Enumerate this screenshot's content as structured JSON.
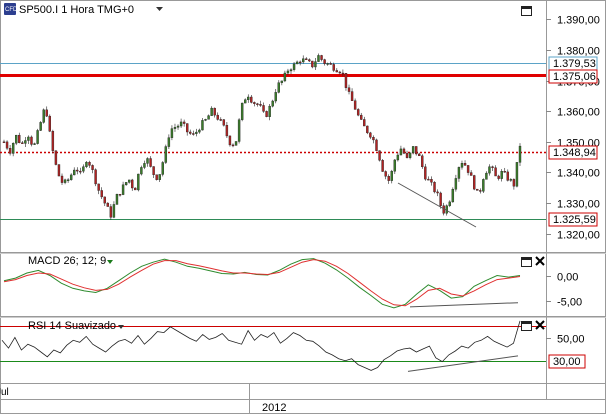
{
  "header": {
    "icon_text": "CFD",
    "title": "SP500.I 1 Hora TMG+0",
    "dropdown_icon": "triangle-down"
  },
  "colors": {
    "bull": "#3a7d2a",
    "bear": "#b22222",
    "resistance": "#e00000",
    "current_dotted": "#cc0000",
    "support_green": "#2e8b57",
    "macd_line": "#2e8b2e",
    "signal_line": "#e03030",
    "rsi_upper": "#cc0000",
    "rsi_lower": "#1a8a1a",
    "label_red": "#cc0000",
    "label_blue": "#5ba3c7"
  },
  "price_panel": {
    "ticks": [
      "1.390,00",
      "1.380,00",
      "1.370,00",
      "1.360,00",
      "1.350,00",
      "1.340,00",
      "1.330,00",
      "1.320,00"
    ],
    "labels": {
      "top_channel": "1.379,53",
      "resistance": "1.375,06",
      "current": "1.348,94",
      "support": "1.325,59"
    }
  },
  "macd_panel": {
    "title": "MACD 26; 12; 9",
    "ticks": [
      "0,00",
      "-5,00"
    ]
  },
  "rsi_panel": {
    "title": "RSI 14 Suavizado",
    "ticks": [
      "50,00"
    ],
    "lower_label": "30,00"
  },
  "xaxis": {
    "left_label": "Jul",
    "center_label": "2012"
  },
  "chart_data": [
    {
      "type": "candlestick",
      "title": "SP500.I 1 Hora TMG+0",
      "ylim": [
        1315,
        1395
      ],
      "y_ticks": [
        1390,
        1380,
        1370,
        1360,
        1350,
        1340,
        1330,
        1320
      ],
      "horizontal_levels": [
        {
          "name": "1.379,53",
          "value": 1379.53
        },
        {
          "name": "1.375,06",
          "value": 1375.06
        },
        {
          "name": "1.348,94",
          "value": 1348.94
        },
        {
          "name": "1.325,59",
          "value": 1325.59
        }
      ],
      "close_path": [
        1350,
        1347,
        1352,
        1349,
        1353,
        1348,
        1355,
        1362,
        1349,
        1340,
        1336,
        1338,
        1342,
        1339,
        1345,
        1340,
        1334,
        1330,
        1326,
        1332,
        1335,
        1338,
        1334,
        1342,
        1345,
        1340,
        1338,
        1345,
        1354,
        1355,
        1356,
        1353,
        1352,
        1355,
        1357,
        1360,
        1358,
        1355,
        1350,
        1349,
        1361,
        1366,
        1363,
        1362,
        1358,
        1362,
        1368,
        1370,
        1374,
        1375,
        1377,
        1376,
        1375,
        1378,
        1376,
        1375,
        1374,
        1373,
        1366,
        1362,
        1357,
        1354,
        1352,
        1347,
        1340,
        1337,
        1345,
        1348,
        1344,
        1348,
        1345,
        1339,
        1336,
        1333,
        1327,
        1330,
        1338,
        1344,
        1342,
        1337,
        1332,
        1340,
        1342,
        1338,
        1340,
        1338,
        1336,
        1349
      ]
    },
    {
      "type": "line",
      "title": "MACD 26; 12; 9",
      "ylim": [
        -7.5,
        4
      ],
      "y_ticks": [
        0,
        -5
      ],
      "series": [
        {
          "name": "MACD",
          "values": [
            -1,
            -0.5,
            0.5,
            1,
            0,
            -1.5,
            -2.5,
            -3,
            -3.3,
            -2.5,
            -1,
            0.5,
            1.8,
            2.6,
            3.2,
            2.6,
            1.8,
            1.4,
            0.9,
            0.4,
            0.3,
            0.6,
            0.2,
            0.1,
            1,
            2.2,
            3.1,
            3.3,
            2.4,
            1.1,
            -0.5,
            -2.3,
            -3.9,
            -5.6,
            -6.3,
            -5.6,
            -3.6,
            -1.8,
            -2.9,
            -4.4,
            -4.1,
            -2.1,
            -1,
            0,
            -0.3,
            0
          ]
        },
        {
          "name": "Signal",
          "values": [
            -1.2,
            -0.8,
            0,
            0.5,
            0.3,
            -0.7,
            -1.7,
            -2.4,
            -2.9,
            -2.7,
            -1.7,
            -0.3,
            1,
            2.2,
            2.9,
            2.9,
            2.3,
            1.9,
            1.4,
            0.9,
            0.5,
            0.5,
            0.3,
            0.2,
            0.6,
            1.6,
            2.6,
            3.1,
            2.8,
            1.8,
            0.4,
            -1.3,
            -3,
            -4.6,
            -5.7,
            -5.9,
            -4.6,
            -2.9,
            -2.5,
            -3.6,
            -4,
            -3,
            -1.8,
            -0.8,
            -0.5,
            -0.2
          ]
        },
        {
          "name": "Divergence",
          "values": [
            -6.1,
            -5.3
          ]
        }
      ]
    },
    {
      "type": "line",
      "title": "RSI 14 Suavizado",
      "ylim": [
        5,
        70
      ],
      "y_ticks": [
        50
      ],
      "horizontal_levels": [
        {
          "name": "30,00",
          "value": 30
        }
      ],
      "series": [
        {
          "name": "RSI",
          "values": [
            48,
            40,
            51,
            38,
            44,
            41,
            36,
            31,
            38,
            35,
            43,
            48,
            46,
            52,
            44,
            40,
            36,
            42,
            47,
            49,
            45,
            53,
            44,
            50,
            57,
            56,
            62,
            58,
            54,
            50,
            47,
            54,
            49,
            51,
            55,
            48,
            46,
            44,
            58,
            48,
            54,
            51,
            56,
            45,
            50,
            56,
            53,
            48,
            47,
            42,
            36,
            33,
            29,
            27,
            29,
            23,
            20,
            17,
            20,
            28,
            32,
            37,
            39,
            40,
            36,
            39,
            42,
            30,
            26,
            33,
            37,
            42,
            40,
            46,
            48,
            52,
            47,
            44,
            41,
            45,
            68
          ]
        },
        {
          "name": "Divergence",
          "values": [
            16,
            32
          ]
        }
      ]
    }
  ]
}
